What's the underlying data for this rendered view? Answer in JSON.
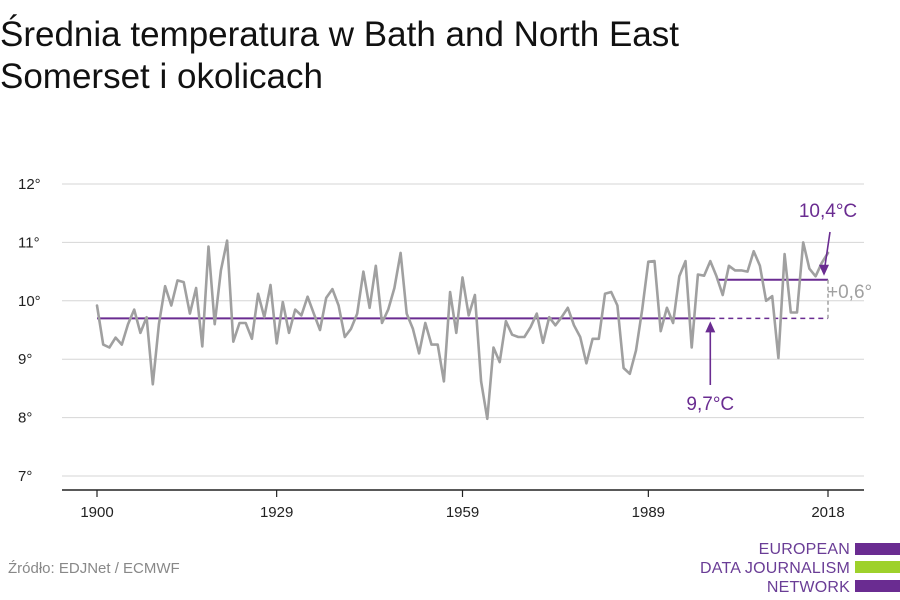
{
  "title": "Średnia temperatura w Bath and North East Somerset i okolicach",
  "source": "Źródło: EDJNet / ECMWF",
  "logo": {
    "lines": [
      "EUROPEAN",
      "DATA JOURNALISM",
      "NETWORK"
    ],
    "colors": [
      "#6a2c91",
      "#9ed12b",
      "#6a2c91"
    ]
  },
  "colors": {
    "series": "#a0a0a0",
    "accent": "#6a2c91",
    "delta": "#a0a0a0",
    "grid": "#d6d6d6",
    "axis": "#222222"
  },
  "chart_data": {
    "type": "line",
    "x_ticks": [
      1900,
      1929,
      1959,
      1989,
      2018
    ],
    "y_ticks": [
      {
        "value": 7,
        "label": "7°"
      },
      {
        "value": 8,
        "label": "8°"
      },
      {
        "value": 9,
        "label": "9°"
      },
      {
        "value": 10,
        "label": "10°"
      },
      {
        "value": 11,
        "label": "11°"
      },
      {
        "value": 12,
        "label": "12°"
      }
    ],
    "xlim": [
      1900,
      2018
    ],
    "ylim": [
      7,
      12
    ],
    "grid": true,
    "series": [
      {
        "x_start": 1900,
        "values": [
          9.92,
          9.25,
          9.2,
          9.37,
          9.25,
          9.6,
          9.85,
          9.45,
          9.72,
          8.57,
          9.6,
          10.25,
          9.92,
          10.35,
          10.32,
          9.78,
          10.22,
          9.22,
          10.93,
          9.6,
          10.52,
          11.03,
          9.3,
          9.62,
          9.62,
          9.35,
          10.12,
          9.72,
          10.27,
          9.27,
          9.98,
          9.45,
          9.85,
          9.75,
          10.07,
          9.78,
          9.5,
          10.05,
          10.2,
          9.92,
          9.38,
          9.52,
          9.78,
          10.5,
          9.88,
          10.6,
          9.62,
          9.85,
          10.22,
          10.82,
          9.78,
          9.52,
          9.1,
          9.62,
          9.25,
          9.25,
          8.62,
          10.15,
          9.45,
          10.4,
          9.75,
          10.1,
          8.62,
          7.98,
          9.2,
          8.95,
          9.65,
          9.42,
          9.38,
          9.38,
          9.55,
          9.78,
          9.28,
          9.72,
          9.58,
          9.72,
          9.88,
          9.58,
          9.38,
          8.93,
          9.35,
          9.35,
          10.12,
          10.15,
          9.92,
          8.85,
          8.75,
          9.15,
          9.85,
          10.67,
          10.68,
          9.48,
          9.88,
          9.62,
          10.42,
          10.68,
          9.2,
          10.45,
          10.43,
          10.68,
          10.42,
          10.1,
          10.6,
          10.52,
          10.52,
          10.5,
          10.85,
          10.6,
          10.0,
          10.08,
          9.02,
          10.8,
          9.8,
          9.8,
          11.0,
          10.55,
          10.42,
          10.65,
          10.82
        ]
      }
    ],
    "reference_lines": [
      {
        "value": 9.7,
        "label": "9,7°C",
        "x_from": 1900,
        "x_solid_to": 1999,
        "x_dash_to": 2018,
        "pointer_x": 1999
      },
      {
        "value": 10.36,
        "label": "10,4°C",
        "x_from": 2000,
        "x_to": 2018,
        "pointer_x": 2018
      }
    ],
    "delta": {
      "label": "+0,6°",
      "x": 2018
    }
  }
}
